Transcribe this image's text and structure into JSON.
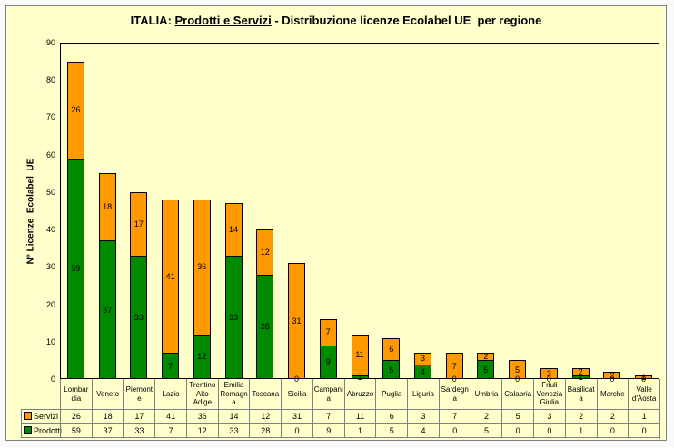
{
  "title_parts": {
    "prefix": "ITALIA: ",
    "underlined": "Prodotti e Servizi",
    "suffix": " - Distribuzione licenze Ecolabel UE  per regione"
  },
  "chart_data": {
    "type": "bar",
    "stacked": true,
    "title": "ITALIA: Prodotti e Servizi - Distribuzione licenze Ecolabel UE per regione",
    "xlabel": "",
    "ylabel": "N° Licenze  Ecolabel  UE",
    "ylim": [
      0,
      90
    ],
    "yticks": [
      0,
      10,
      20,
      30,
      40,
      50,
      60,
      70,
      80,
      90
    ],
    "grid": false,
    "legend_position": "table-left",
    "categories": [
      "Lombardia",
      "Veneto",
      "Piemonte",
      "Lazio",
      "Trentino Alto Adige",
      "Emilia Romagna",
      "Toscana",
      "Sicilia",
      "Campania",
      "Abruzzo",
      "Puglia",
      "Liguria",
      "Sardegna",
      "Umbria",
      "Calabria",
      "Friuli Venezia Giulia",
      "Basilicata",
      "Marche",
      "Valle d'Aosta"
    ],
    "category_display": [
      "Lombar\ndia",
      "Veneto",
      "Piemont\ne",
      "Lazio",
      "Trentino\nAlto\nAdige",
      "Emilia\nRomagn\na",
      "Toscana",
      "Sicilia",
      "Campani\na",
      "Abruzzo",
      "Puglia",
      "Liguria",
      "Sardegn\na",
      "Umbria",
      "Calabria",
      "Friuli\nVenezia\nGiulia",
      "Basilicat\na",
      "Marche",
      "Valle\nd'Aosta"
    ],
    "series": [
      {
        "name": "Prodotti",
        "color": "#008A00",
        "values": [
          59,
          37,
          33,
          7,
          12,
          33,
          28,
          0,
          9,
          1,
          5,
          4,
          0,
          5,
          0,
          0,
          1,
          0,
          0
        ]
      },
      {
        "name": "Servizi",
        "color": "#FF9900",
        "values": [
          26,
          18,
          17,
          41,
          36,
          14,
          12,
          31,
          7,
          11,
          6,
          3,
          7,
          2,
          5,
          3,
          2,
          2,
          1
        ]
      }
    ],
    "table_rows": [
      "Servizi",
      "Prodotti"
    ]
  },
  "colors": {
    "chart_background": "#FFFFCC",
    "frame_border": "#808080",
    "plot_border": "#000000",
    "table_grid": "#808080",
    "bar_border": "#000000",
    "text": "#000000",
    "servizi": "#FF9900",
    "prodotti": "#008A00"
  }
}
